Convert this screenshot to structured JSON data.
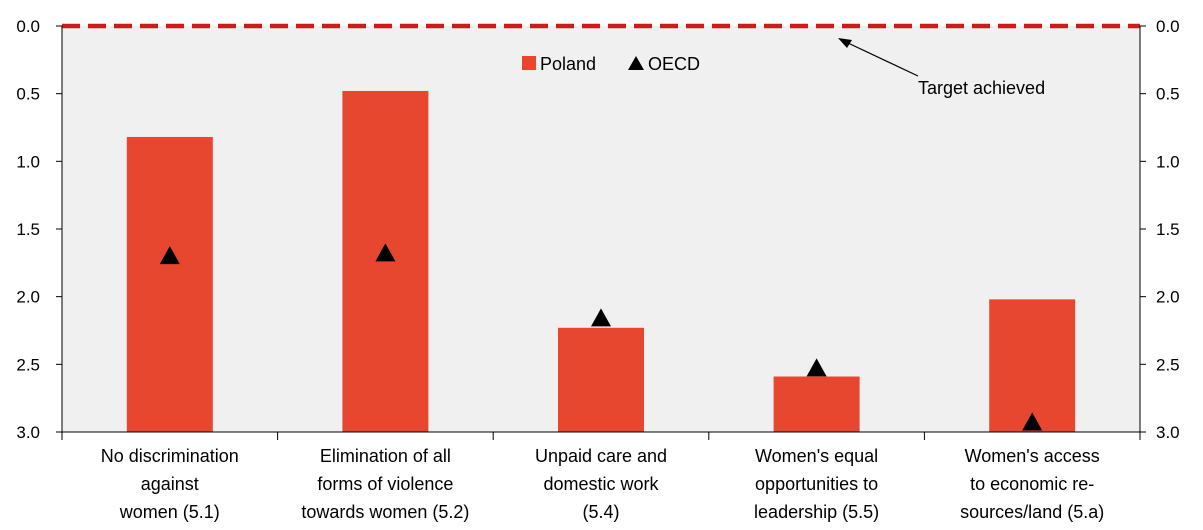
{
  "chart_data": {
    "type": "bar",
    "categories": [
      [
        "No discrimination",
        "against",
        "women (5.1)"
      ],
      [
        "Elimination of all",
        "forms of violence",
        "towards women (5.2)"
      ],
      [
        "Unpaid care and",
        "domestic work",
        "(5.4)"
      ],
      [
        "Women's equal",
        "opportunities to",
        "leadership (5.5)"
      ],
      [
        "Women's access",
        "to economic re-",
        "sources/land  (5.a)"
      ]
    ],
    "series": [
      {
        "name": "Poland",
        "kind": "bar",
        "color": "#e8472f",
        "values": [
          0.82,
          0.48,
          2.23,
          2.59,
          2.02
        ]
      },
      {
        "name": "OECD",
        "kind": "marker-triangle",
        "color": "#000000",
        "values": [
          1.7,
          1.68,
          2.16,
          2.53,
          2.93
        ]
      }
    ],
    "y_axis": {
      "min": 0.0,
      "max": 3.0,
      "inverted": true,
      "ticks": [
        "0.0",
        "0.5",
        "1.0",
        "1.5",
        "2.0",
        "2.5",
        "3.0"
      ],
      "tick_values": [
        0,
        0.5,
        1,
        1.5,
        2,
        2.5,
        3
      ],
      "secondary_axis_mirrored": true
    },
    "target_line": {
      "value": 0.0,
      "style": "dashed",
      "color": "#cc1b1b"
    },
    "annotation": {
      "text": "Target achieved",
      "points_to": "target-line"
    },
    "legend": {
      "placement": "top-center"
    },
    "grid": false,
    "background": "#f0f0f0"
  }
}
